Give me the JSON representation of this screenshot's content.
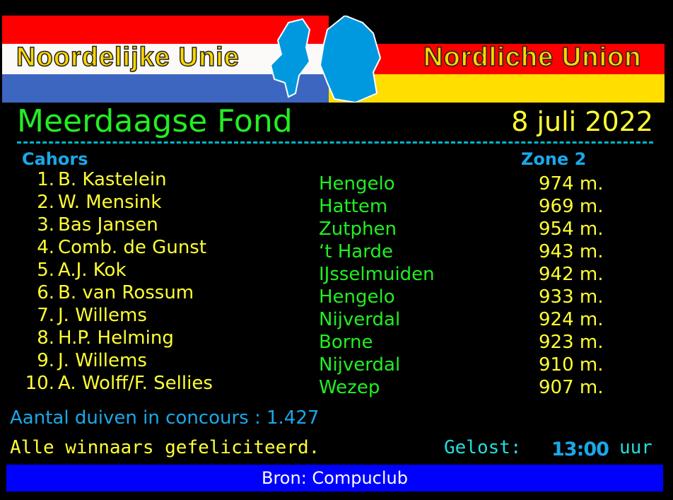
{
  "banner": {
    "left_text": "Noordelijke Unie",
    "right_text": "Nordliche Union",
    "colors": {
      "red": "#ff0000",
      "white": "#fcfaf8",
      "blue": "#3d66c0",
      "yellow": "#ffde00",
      "map": "#0099e0"
    }
  },
  "header": {
    "title": "Meerdaagse Fond",
    "date": "8 juli 2022"
  },
  "race": {
    "location": "Cahors",
    "zone": "Zone 2"
  },
  "results": [
    {
      "rank": "1.",
      "name": "B. Kastelein",
      "place": "Hengelo",
      "distance": "974 m."
    },
    {
      "rank": "2.",
      "name": "W. Mensink",
      "place": "Hattem",
      "distance": "969 m."
    },
    {
      "rank": "3.",
      "name": "Bas Jansen",
      "place": "Zutphen",
      "distance": "954 m."
    },
    {
      "rank": "4.",
      "name": "Comb. de Gunst",
      "place": "‘t Harde",
      "distance": "943 m."
    },
    {
      "rank": "5.",
      "name": "A.J. Kok",
      "place": "IJsselmuiden",
      "distance": "942 m."
    },
    {
      "rank": "6.",
      "name": "B. van Rossum",
      "place": "Hengelo",
      "distance": "933 m."
    },
    {
      "rank": "7.",
      "name": "J. Willems",
      "place": "Nijverdal",
      "distance": "924 m."
    },
    {
      "rank": "8.",
      "name": "H.P. Helming",
      "place": "Borne",
      "distance": "923 m."
    },
    {
      "rank": "9.",
      "name": "J. Willems",
      "place": "Nijverdal",
      "distance": "910 m."
    },
    {
      "rank": "10.",
      "name": "A. Wolff/F. Sellies",
      "place": "Wezep",
      "distance": "907 m."
    }
  ],
  "footer": {
    "count_label": "Aantal duiven in concours :",
    "count_value": "1.427",
    "congrats": "Alle winnaars gefeliciteerd.",
    "release_label": "Gelost:",
    "release_time": "13:00",
    "release_unit": "uur",
    "source": "Bron: Compuclub"
  }
}
